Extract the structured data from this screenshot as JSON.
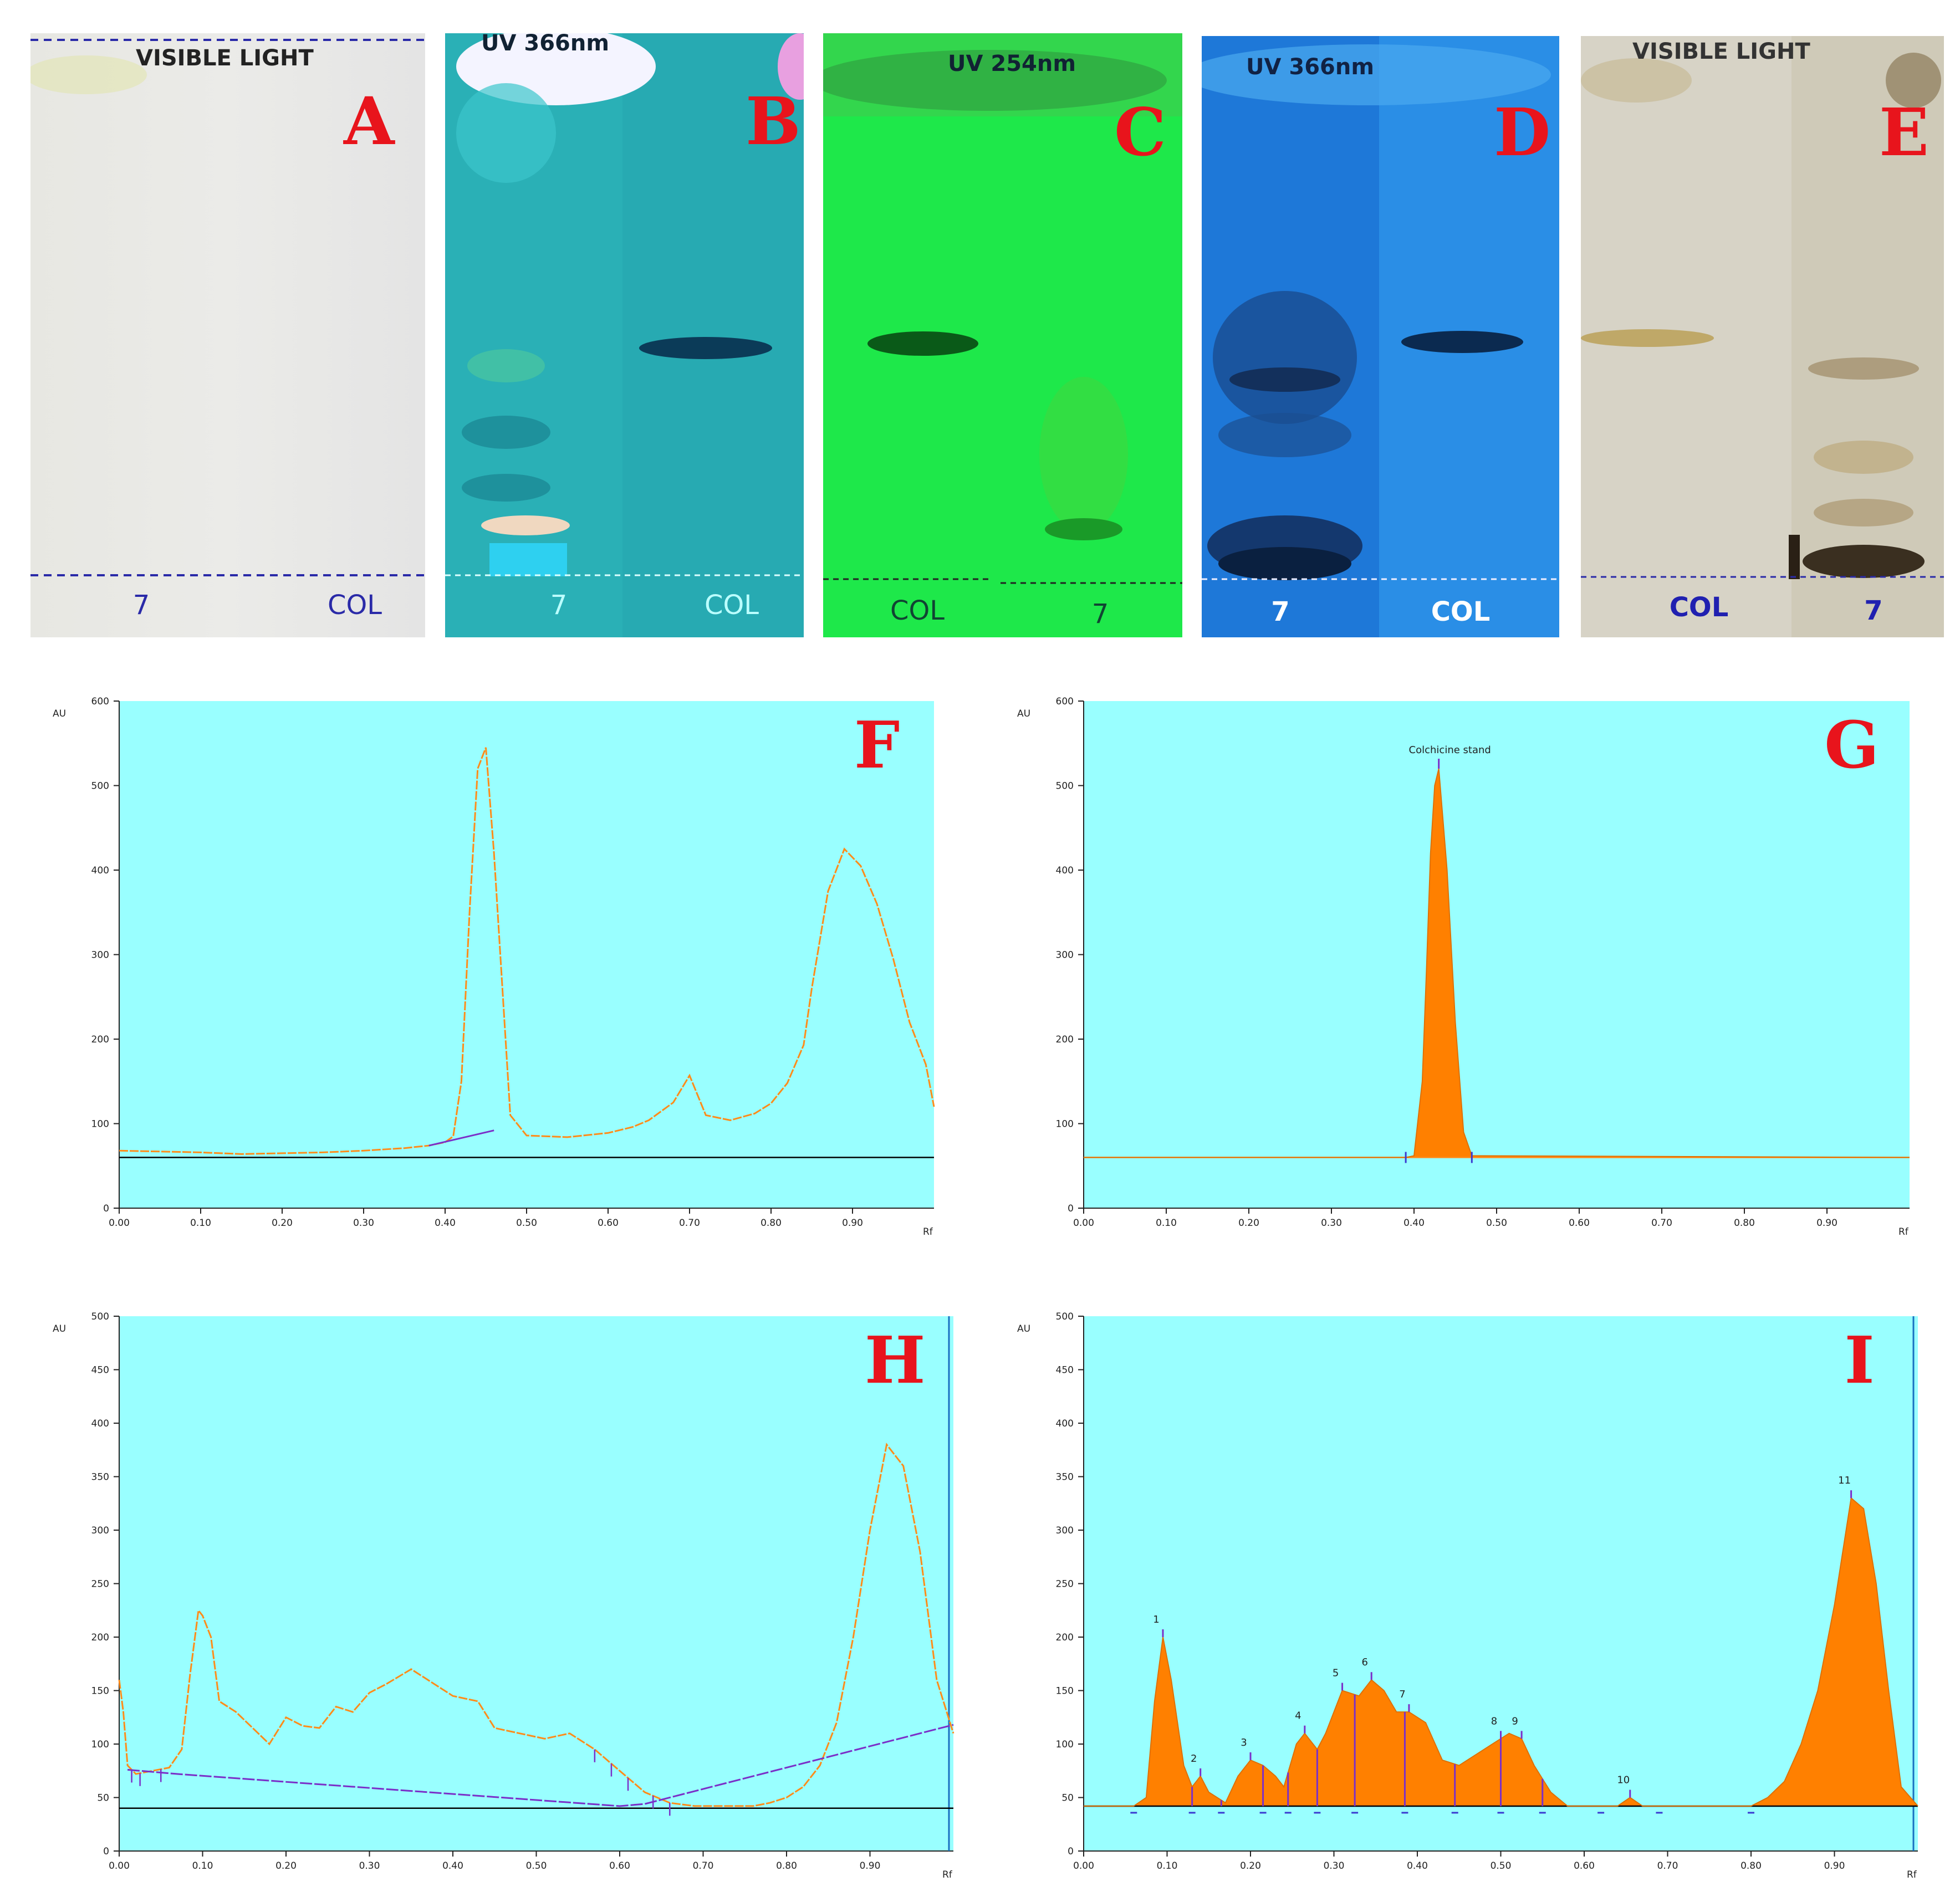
{
  "plates": [
    {
      "letter": "A",
      "header": "VISIBLE LIGHT",
      "lanes": [
        "7",
        "COL"
      ]
    },
    {
      "letter": "B",
      "header": "UV 366nm",
      "lanes": [
        "7",
        "COL"
      ]
    },
    {
      "letter": "C",
      "header": "UV 254nm",
      "lanes": [
        "COL",
        "7"
      ]
    },
    {
      "letter": "D",
      "header": "UV 366nm",
      "lanes": [
        "7",
        "COL"
      ]
    },
    {
      "letter": "E",
      "header": "VISIBLE LIGHT",
      "lanes": [
        "COL",
        "7"
      ]
    }
  ],
  "colors": {
    "plot_bg": "#99ffff",
    "curve": "#ff8c1a",
    "fill": "#ff8000",
    "baseline": "#7b2fc8",
    "label_red": "#e8141c"
  },
  "chart_data": [
    {
      "letter": "F",
      "type": "line",
      "ylabel": "AU",
      "xlabel": "Rf",
      "yticks": [
        "0",
        "100",
        "200",
        "300",
        "400",
        "500",
        "600"
      ],
      "xticks": [
        "0.00",
        "0.10",
        "0.20",
        "0.30",
        "0.40",
        "0.50",
        "0.60",
        "0.70",
        "0.80",
        "0.90"
      ],
      "xlim": [
        0,
        1.0
      ],
      "ylim": [
        0,
        600
      ],
      "x": [
        0.0,
        0.05,
        0.1,
        0.15,
        0.2,
        0.25,
        0.3,
        0.35,
        0.38,
        0.4,
        0.41,
        0.42,
        0.43,
        0.44,
        0.45,
        0.46,
        0.48,
        0.5,
        0.55,
        0.6,
        0.63,
        0.65,
        0.68,
        0.7,
        0.72,
        0.75,
        0.78,
        0.8,
        0.82,
        0.84,
        0.85,
        0.87,
        0.89,
        0.91,
        0.93,
        0.95,
        0.97,
        0.99,
        1.0
      ],
      "values": [
        68,
        67,
        66,
        64,
        65,
        66,
        68,
        71,
        74,
        78,
        85,
        150,
        350,
        520,
        545,
        420,
        110,
        86,
        84,
        89,
        96,
        104,
        125,
        157,
        110,
        104,
        112,
        124,
        148,
        193,
        260,
        375,
        425,
        405,
        360,
        295,
        220,
        170,
        120
      ]
    },
    {
      "letter": "G",
      "type": "area",
      "ylabel": "AU",
      "xlabel": "Rf",
      "yticks": [
        "0",
        "100",
        "200",
        "300",
        "400",
        "500",
        "600"
      ],
      "xticks": [
        "0.00",
        "0.10",
        "0.20",
        "0.30",
        "0.40",
        "0.50",
        "0.60",
        "0.70",
        "0.80",
        "0.90"
      ],
      "xlim": [
        0,
        1.0
      ],
      "ylim": [
        0,
        600
      ],
      "peak_label": "Colchicine stand",
      "x": [
        0.0,
        0.39,
        0.4,
        0.41,
        0.415,
        0.42,
        0.425,
        0.43,
        0.44,
        0.45,
        0.46,
        0.47,
        1.0
      ],
      "values": [
        60,
        60,
        62,
        150,
        280,
        420,
        500,
        520,
        400,
        220,
        90,
        62,
        60
      ]
    },
    {
      "letter": "H",
      "type": "line",
      "ylabel": "AU",
      "xlabel": "Rf",
      "yticks": [
        "0",
        "50",
        "100",
        "150",
        "200",
        "250",
        "300",
        "350",
        "400",
        "450",
        "500"
      ],
      "xticks": [
        "0.00",
        "0.10",
        "0.20",
        "0.30",
        "0.40",
        "0.50",
        "0.60",
        "0.70",
        "0.80",
        "0.90"
      ],
      "xlim": [
        0,
        1.0
      ],
      "ylim": [
        0,
        500
      ],
      "x": [
        0.0,
        0.005,
        0.01,
        0.015,
        0.02,
        0.04,
        0.06,
        0.075,
        0.085,
        0.095,
        0.1,
        0.11,
        0.12,
        0.14,
        0.16,
        0.18,
        0.2,
        0.22,
        0.24,
        0.26,
        0.28,
        0.3,
        0.32,
        0.35,
        0.37,
        0.4,
        0.43,
        0.45,
        0.48,
        0.51,
        0.54,
        0.57,
        0.6,
        0.63,
        0.66,
        0.69,
        0.72,
        0.74,
        0.76,
        0.78,
        0.8,
        0.82,
        0.84,
        0.86,
        0.88,
        0.9,
        0.92,
        0.94,
        0.96,
        0.98,
        1.0
      ],
      "values": [
        160,
        130,
        80,
        76,
        72,
        75,
        78,
        95,
        165,
        225,
        220,
        200,
        140,
        130,
        115,
        100,
        125,
        117,
        115,
        135,
        130,
        148,
        156,
        170,
        160,
        145,
        140,
        115,
        110,
        105,
        110,
        95,
        75,
        55,
        45,
        42,
        42,
        42,
        42,
        45,
        50,
        60,
        80,
        120,
        200,
        300,
        380,
        360,
        280,
        160,
        110
      ]
    },
    {
      "letter": "I",
      "type": "area",
      "ylabel": "AU",
      "xlabel": "Rf",
      "yticks": [
        "0",
        "50",
        "100",
        "150",
        "200",
        "250",
        "300",
        "350",
        "400",
        "450",
        "500"
      ],
      "xticks": [
        "0.00",
        "0.10",
        "0.20",
        "0.30",
        "0.40",
        "0.50",
        "0.60",
        "0.70",
        "0.80",
        "0.90"
      ],
      "xlim": [
        0,
        1.0
      ],
      "ylim": [
        0,
        500
      ],
      "peak_numbers": [
        "1",
        "2",
        "3",
        "4",
        "5",
        "6",
        "7",
        "8",
        "9",
        "10",
        "11"
      ],
      "peak_positions": [
        0.095,
        0.14,
        0.2,
        0.265,
        0.31,
        0.345,
        0.39,
        0.5,
        0.525,
        0.655,
        0.92
      ],
      "x": [
        0.0,
        0.06,
        0.075,
        0.085,
        0.095,
        0.105,
        0.12,
        0.13,
        0.14,
        0.15,
        0.17,
        0.185,
        0.2,
        0.215,
        0.23,
        0.24,
        0.255,
        0.265,
        0.28,
        0.29,
        0.3,
        0.31,
        0.33,
        0.345,
        0.36,
        0.375,
        0.39,
        0.41,
        0.43,
        0.45,
        0.47,
        0.49,
        0.5,
        0.51,
        0.525,
        0.54,
        0.56,
        0.58,
        0.6,
        0.62,
        0.64,
        0.655,
        0.67,
        0.7,
        0.75,
        0.8,
        0.82,
        0.84,
        0.86,
        0.88,
        0.9,
        0.92,
        0.935,
        0.95,
        0.965,
        0.98,
        1.0
      ],
      "values": [
        42,
        42,
        50,
        140,
        200,
        160,
        80,
        60,
        70,
        55,
        45,
        70,
        85,
        80,
        70,
        60,
        100,
        110,
        95,
        110,
        130,
        150,
        145,
        160,
        150,
        130,
        130,
        120,
        85,
        80,
        90,
        100,
        105,
        110,
        105,
        80,
        55,
        42,
        42,
        42,
        42,
        50,
        42,
        42,
        42,
        42,
        50,
        65,
        100,
        150,
        230,
        330,
        320,
        250,
        150,
        60,
        42
      ]
    }
  ]
}
